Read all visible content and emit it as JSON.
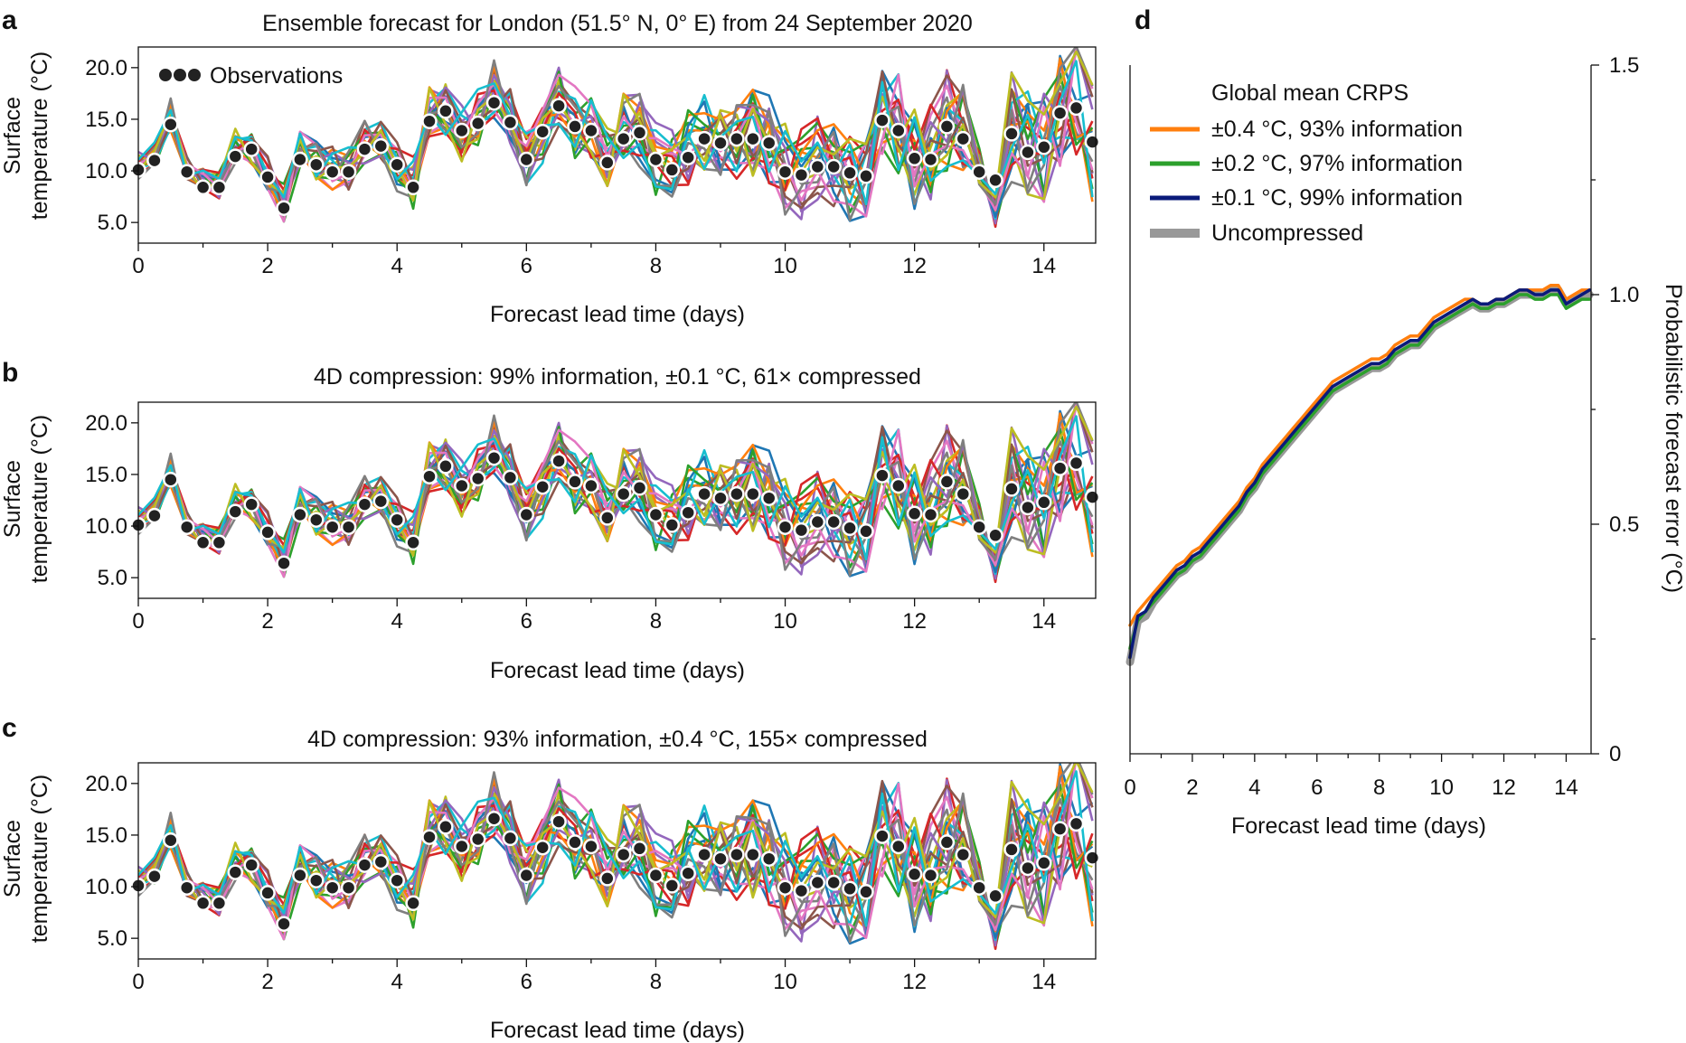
{
  "panel_letters": {
    "a": "a",
    "b": "b",
    "c": "c",
    "d": "d"
  },
  "chart_data": [
    {
      "id": "a",
      "type": "line",
      "title": "Ensemble forecast for London (51.5° N, 0° E) from 24 September 2020",
      "xlabel": "Forecast lead time (days)",
      "ylabel_line1": "Surface",
      "ylabel_line2": "temperature (°C)",
      "xlim": [
        0,
        14.8
      ],
      "ylim": [
        3,
        22
      ],
      "xticks": [
        0,
        2,
        4,
        6,
        8,
        10,
        12,
        14
      ],
      "xtick_labels": [
        "0",
        "2",
        "4",
        "6",
        "8",
        "10",
        "12",
        "14"
      ],
      "yticks": [
        5,
        10,
        15,
        20
      ],
      "ytick_labels": [
        "5.0",
        "10.0",
        "15.0",
        "20.0"
      ],
      "legend": "Observations",
      "ensemble_members": 20,
      "observations": {
        "x": [
          0,
          0.25,
          0.5,
          0.75,
          1.0,
          1.25,
          1.5,
          1.75,
          2.0,
          2.25,
          2.5,
          2.75,
          3.0,
          3.25,
          3.5,
          3.75,
          4.0,
          4.25,
          4.5,
          4.75,
          5.0,
          5.25,
          5.5,
          5.75,
          6.0,
          6.25,
          6.5,
          6.75,
          7.0,
          7.25,
          7.5,
          7.75,
          8.0,
          8.25,
          8.5,
          8.75,
          9.0,
          9.25,
          9.5,
          9.75,
          10.0,
          10.25,
          10.5,
          10.75,
          11.0,
          11.25,
          11.5,
          11.75,
          12.0,
          12.25,
          12.5,
          12.75,
          13.0,
          13.25,
          13.5,
          13.75,
          14.0,
          14.25,
          14.5,
          14.75
        ],
        "y": [
          10.1,
          11.0,
          14.5,
          9.9,
          8.4,
          8.4,
          11.4,
          12.1,
          9.4,
          6.4,
          11.1,
          10.6,
          9.9,
          9.9,
          12.1,
          12.4,
          10.6,
          8.4,
          14.8,
          15.8,
          13.9,
          14.6,
          16.6,
          14.7,
          11.1,
          13.8,
          16.3,
          14.3,
          13.9,
          10.8,
          13.1,
          13.7,
          11.1,
          10.1,
          11.3,
          13.1,
          12.7,
          13.1,
          13.1,
          12.7,
          9.9,
          9.6,
          10.4,
          10.4,
          9.8,
          9.5,
          14.9,
          13.9,
          11.2,
          11.1,
          14.3,
          13.1,
          9.9,
          9.1,
          13.6,
          11.8,
          12.3,
          15.6,
          16.1,
          12.8
        ]
      }
    },
    {
      "id": "b",
      "type": "line",
      "title": "4D compression: 99% information, ±0.1 °C, 61× compressed",
      "xlabel": "Forecast lead time (days)",
      "ylabel_line1": "Surface",
      "ylabel_line2": "temperature (°C)",
      "xlim": [
        0,
        14.8
      ],
      "ylim": [
        3,
        22
      ],
      "xticks": [
        0,
        2,
        4,
        6,
        8,
        10,
        12,
        14
      ],
      "xtick_labels": [
        "0",
        "2",
        "4",
        "6",
        "8",
        "10",
        "12",
        "14"
      ],
      "yticks": [
        5,
        10,
        15,
        20
      ],
      "ytick_labels": [
        "5.0",
        "10.0",
        "15.0",
        "20.0"
      ],
      "ensemble_members": 20,
      "observations_same_as": "a"
    },
    {
      "id": "c",
      "type": "line",
      "title": "4D compression: 93% information, ±0.4 °C, 155× compressed",
      "xlabel": "Forecast lead time (days)",
      "ylabel_line1": "Surface",
      "ylabel_line2": "temperature (°C)",
      "xlim": [
        0,
        14.8
      ],
      "ylim": [
        3,
        22
      ],
      "xticks": [
        0,
        2,
        4,
        6,
        8,
        10,
        12,
        14
      ],
      "xtick_labels": [
        "0",
        "2",
        "4",
        "6",
        "8",
        "10",
        "12",
        "14"
      ],
      "yticks": [
        5,
        10,
        15,
        20
      ],
      "ytick_labels": [
        "5.0",
        "10.0",
        "15.0",
        "20.0"
      ],
      "ensemble_members": 20,
      "observations_same_as": "a"
    },
    {
      "id": "d",
      "type": "line",
      "title": "",
      "xlabel": "Forecast lead time (days)",
      "ylabel": "Probabilistic forecast error (°C)",
      "xlim": [
        0,
        14.8
      ],
      "ylim": [
        0,
        1.5
      ],
      "xticks": [
        0,
        2,
        4,
        6,
        8,
        10,
        12,
        14
      ],
      "xtick_labels": [
        "0",
        "2",
        "4",
        "6",
        "8",
        "10",
        "12",
        "14"
      ],
      "yticks": [
        0,
        0.5,
        1.0,
        1.5
      ],
      "ytick_labels": [
        "0",
        "0.5",
        "1.0",
        "1.5"
      ],
      "legend_title": "Global mean CRPS",
      "legend_position": "top-left",
      "x_step": 0.25,
      "series": [
        {
          "name": "Uncompressed",
          "color": "#999999",
          "values": [
            0.2,
            0.29,
            0.3,
            0.33,
            0.35,
            0.37,
            0.39,
            0.4,
            0.42,
            0.43,
            0.45,
            0.47,
            0.49,
            0.51,
            0.53,
            0.56,
            0.58,
            0.61,
            0.63,
            0.65,
            0.67,
            0.69,
            0.71,
            0.73,
            0.75,
            0.77,
            0.79,
            0.8,
            0.81,
            0.82,
            0.83,
            0.84,
            0.84,
            0.85,
            0.87,
            0.88,
            0.89,
            0.89,
            0.91,
            0.93,
            0.94,
            0.95,
            0.96,
            0.97,
            0.98,
            0.97,
            0.97,
            0.98,
            0.98,
            0.99,
            1.0,
            1.0,
            1.0,
            1.0,
            1.01,
            1.01,
            0.98,
            0.99,
            1.0,
            1.0
          ]
        },
        {
          "name": "±0.1 °C, 99% information",
          "color": "#0a1a7a",
          "values": [
            0.21,
            0.3,
            0.31,
            0.34,
            0.36,
            0.38,
            0.4,
            0.41,
            0.43,
            0.44,
            0.46,
            0.48,
            0.5,
            0.52,
            0.54,
            0.57,
            0.59,
            0.62,
            0.64,
            0.66,
            0.68,
            0.7,
            0.72,
            0.74,
            0.76,
            0.78,
            0.8,
            0.81,
            0.82,
            0.83,
            0.84,
            0.85,
            0.85,
            0.86,
            0.88,
            0.89,
            0.9,
            0.9,
            0.92,
            0.94,
            0.95,
            0.96,
            0.97,
            0.98,
            0.99,
            0.98,
            0.98,
            0.99,
            0.99,
            1.0,
            1.01,
            1.01,
            1.0,
            1.0,
            1.01,
            1.01,
            0.98,
            0.99,
            1.0,
            1.01
          ]
        },
        {
          "name": "±0.2 °C, 97% information",
          "color": "#2ca02c",
          "values": [
            0.23,
            0.29,
            0.31,
            0.33,
            0.35,
            0.37,
            0.39,
            0.4,
            0.42,
            0.43,
            0.45,
            0.47,
            0.49,
            0.51,
            0.53,
            0.56,
            0.58,
            0.61,
            0.63,
            0.65,
            0.67,
            0.69,
            0.71,
            0.73,
            0.75,
            0.77,
            0.79,
            0.8,
            0.81,
            0.82,
            0.83,
            0.84,
            0.84,
            0.85,
            0.87,
            0.88,
            0.89,
            0.89,
            0.91,
            0.93,
            0.94,
            0.95,
            0.96,
            0.97,
            0.98,
            0.97,
            0.97,
            0.98,
            0.98,
            0.99,
            1.0,
            1.0,
            0.99,
            0.99,
            1.0,
            1.0,
            0.97,
            0.98,
            0.99,
            0.99
          ]
        },
        {
          "name": "±0.4 °C, 93% information",
          "color": "#ff7f0e",
          "values": [
            0.28,
            0.31,
            0.33,
            0.35,
            0.37,
            0.39,
            0.41,
            0.42,
            0.44,
            0.45,
            0.47,
            0.49,
            0.51,
            0.53,
            0.55,
            0.58,
            0.6,
            0.63,
            0.65,
            0.67,
            0.69,
            0.71,
            0.73,
            0.75,
            0.77,
            0.79,
            0.81,
            0.82,
            0.83,
            0.84,
            0.85,
            0.86,
            0.86,
            0.87,
            0.89,
            0.9,
            0.91,
            0.91,
            0.93,
            0.95,
            0.96,
            0.97,
            0.98,
            0.99,
            0.99,
            0.98,
            0.98,
            0.99,
            0.99,
            1.0,
            1.01,
            1.01,
            1.01,
            1.01,
            1.02,
            1.02,
            0.99,
            1.0,
            1.01,
            1.01
          ]
        }
      ],
      "legend_items": [
        "±0.4 °C, 93% information",
        "±0.2 °C, 97% information",
        "±0.1 °C, 99% information",
        "Uncompressed"
      ]
    }
  ]
}
